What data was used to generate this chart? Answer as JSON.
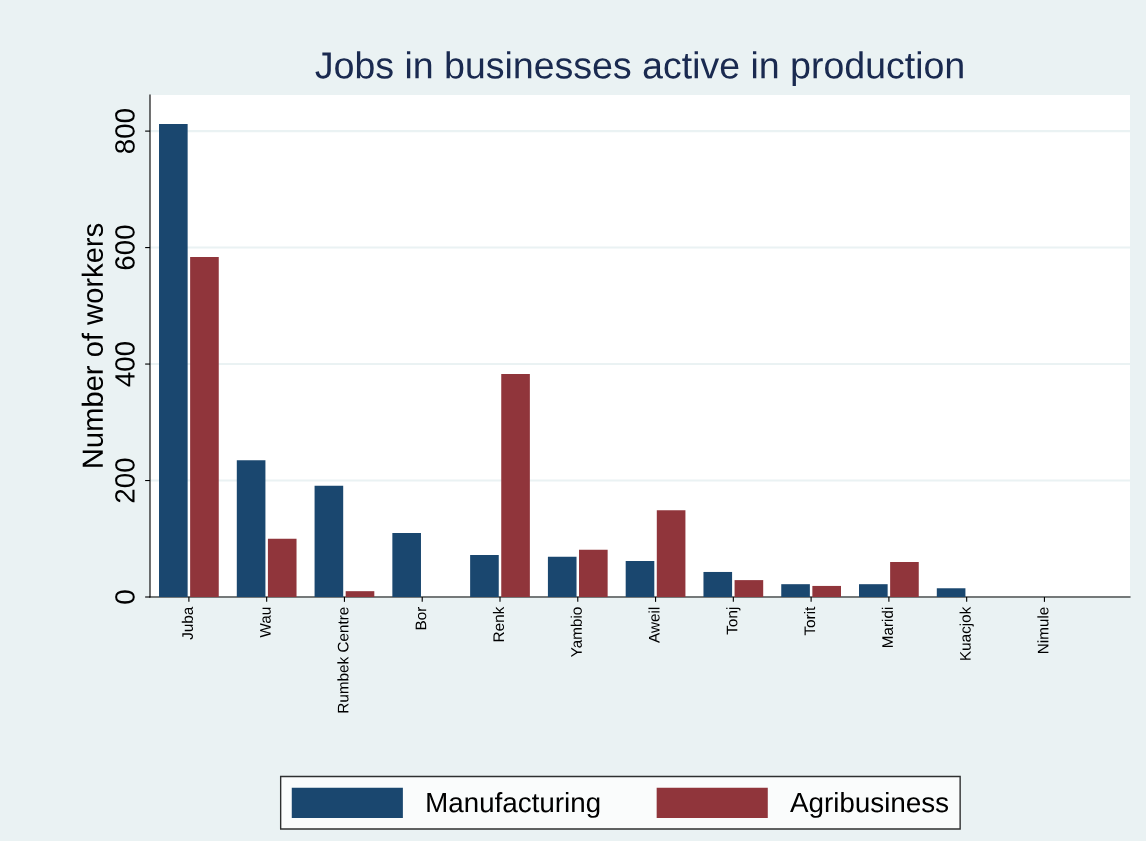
{
  "chart_data": {
    "type": "bar",
    "title": "Jobs in businesses active in production",
    "ylabel": "Number of workers",
    "categories": [
      "Juba",
      "Wau",
      "Rumbek Centre",
      "Bor",
      "Renk",
      "Yambio",
      "Aweil",
      "Tonj",
      "Torit",
      "Maridi",
      "Kuacjok",
      "Nimule"
    ],
    "series": [
      {
        "name": "Manufacturing",
        "color": "#1a476f",
        "values": [
          812,
          235,
          191,
          110,
          72,
          69,
          62,
          43,
          22,
          22,
          15,
          0
        ]
      },
      {
        "name": "Agribusiness",
        "color": "#90353b",
        "values": [
          584,
          100,
          10,
          0,
          383,
          81,
          149,
          29,
          19,
          60,
          0,
          0
        ]
      }
    ],
    "ylim": [
      0,
      862
    ],
    "yticks": [
      0,
      200,
      400,
      600,
      800
    ],
    "grid": "y",
    "legend": "bottom"
  }
}
